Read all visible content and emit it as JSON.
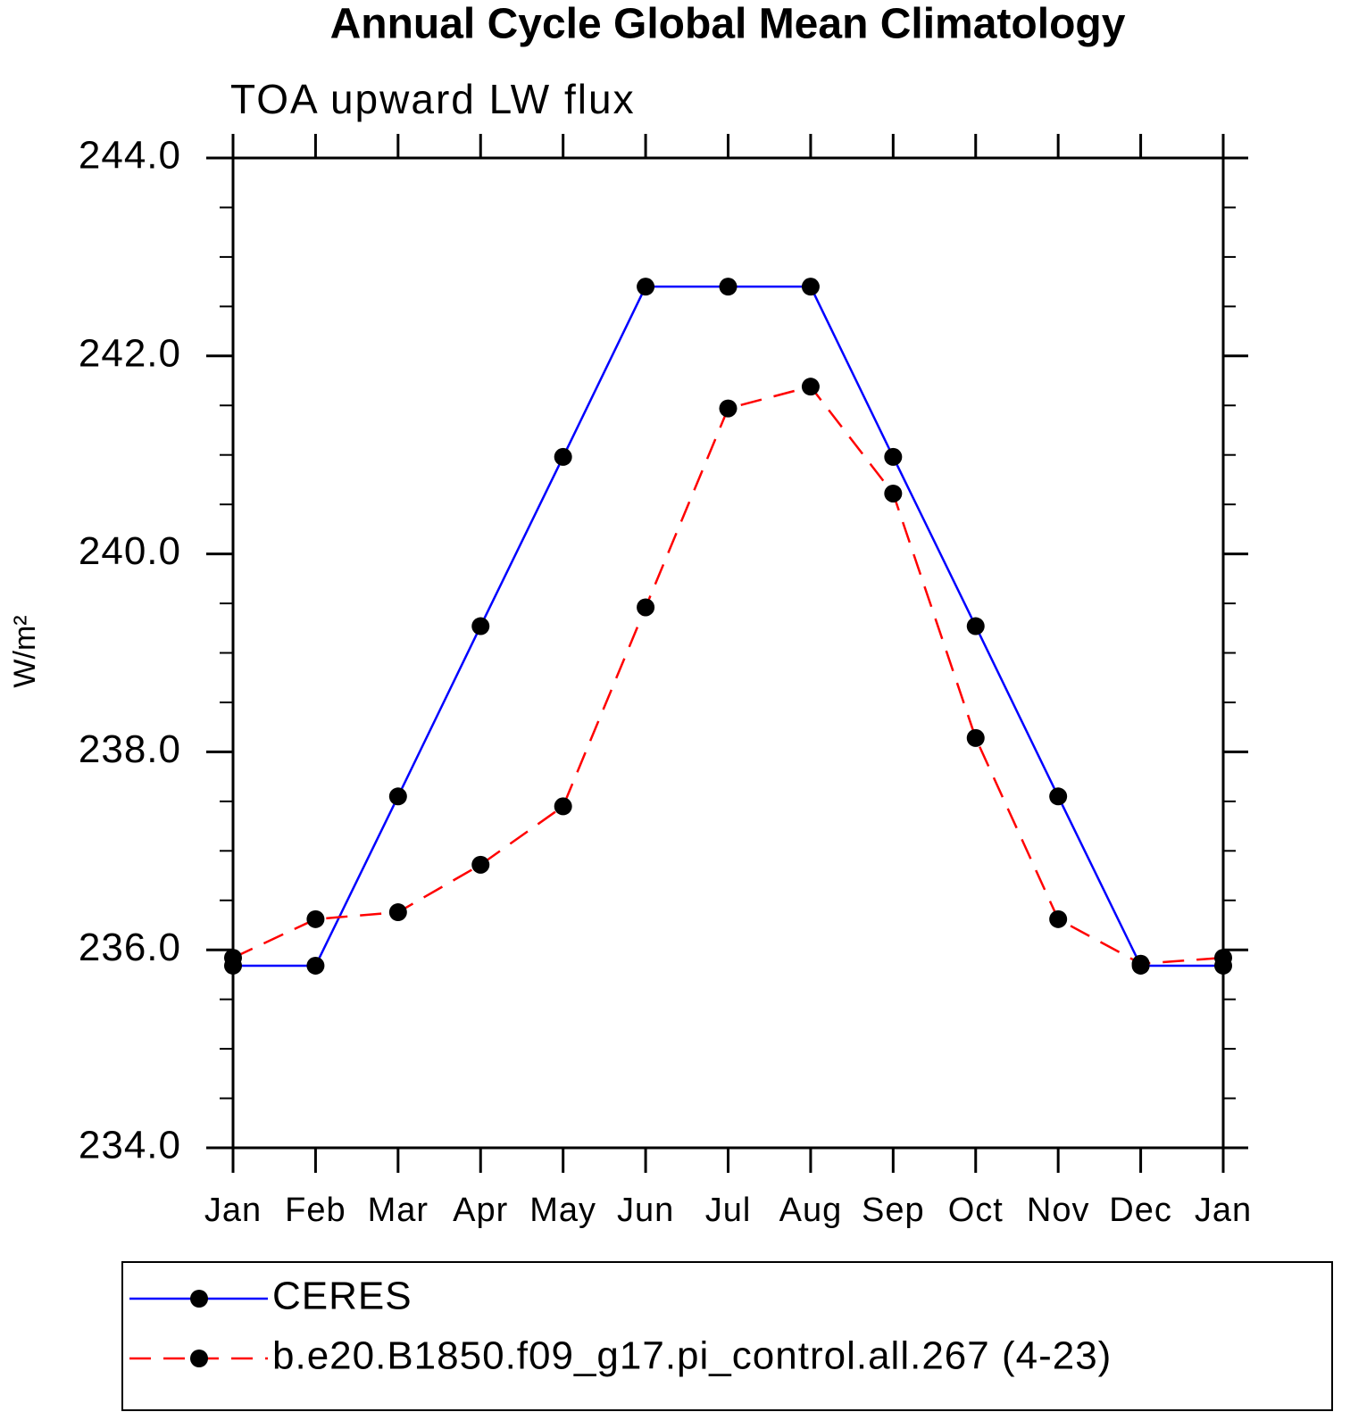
{
  "chart_data": {
    "type": "line",
    "title": "Annual Cycle Global Mean Climatology",
    "subtitle": "TOA upward LW flux",
    "y_label": "W/m²",
    "categories": [
      "Jan",
      "Feb",
      "Mar",
      "Apr",
      "May",
      "Jun",
      "Jul",
      "Aug",
      "Sep",
      "Oct",
      "Nov",
      "Dec",
      "Jan"
    ],
    "series": [
      {
        "name": "CERES",
        "color": "#0000ff",
        "linestyle": "solid",
        "values": [
          235.84,
          235.84,
          237.55,
          239.27,
          240.98,
          242.7,
          242.7,
          242.7,
          240.98,
          239.27,
          237.55,
          235.84,
          235.84
        ]
      },
      {
        "name": "b.e20.B1850.f09_g17.pi_control.all.267 (4-23)",
        "color": "#ff0000",
        "linestyle": "dashed",
        "values": [
          235.92,
          236.31,
          236.38,
          236.86,
          237.45,
          239.46,
          241.47,
          241.69,
          240.61,
          238.14,
          236.31,
          235.86,
          235.92
        ]
      }
    ],
    "ylim": [
      234,
      244
    ],
    "yticks": [
      {
        "value": 234,
        "label": "234.0"
      },
      {
        "value": 236,
        "label": "236.0"
      },
      {
        "value": 238,
        "label": "238.0"
      },
      {
        "value": 240,
        "label": "240.0"
      },
      {
        "value": 242,
        "label": "242.0"
      },
      {
        "value": 244,
        "label": "244.0"
      }
    ],
    "yminorticks": [
      234.5,
      235,
      235.5,
      236.5,
      237,
      237.5,
      238.5,
      239,
      239.5,
      240.5,
      241,
      241.5,
      242.5,
      243,
      243.5
    ],
    "marker": "circle"
  }
}
